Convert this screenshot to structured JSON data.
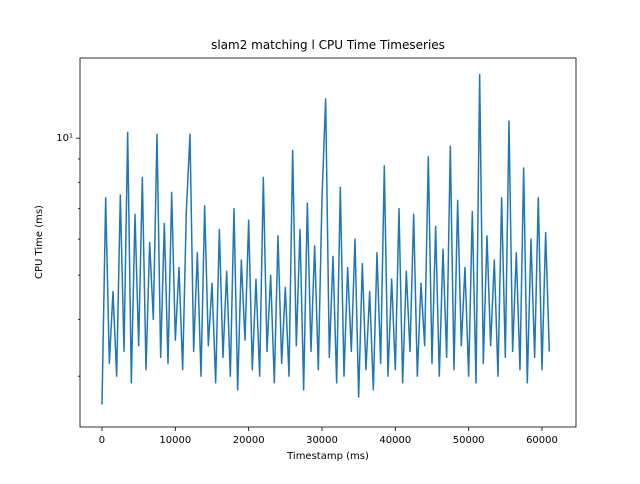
{
  "chart_data": {
    "type": "line",
    "title": "slam2 matching l CPU Time Timeseries",
    "x_label": "Timestamp (ms)",
    "y_label": "CPU Time (ms)",
    "log_y": true,
    "color": "#1f77b4",
    "xlim": [
      -3000,
      64640
    ],
    "ylim": [
      2.32,
      15.0
    ],
    "xticks": [
      0,
      10000,
      20000,
      30000,
      40000,
      50000,
      60000
    ],
    "yticks": [
      {
        "value": 10,
        "label": "10¹"
      }
    ],
    "yminorticks": [
      3,
      4,
      5,
      6,
      7,
      8,
      9
    ],
    "x": [
      0,
      500,
      1000,
      1500,
      2000,
      2500,
      3000,
      3500,
      4000,
      4500,
      5000,
      5500,
      6000,
      6500,
      7000,
      7500,
      8000,
      8500,
      9000,
      9500,
      10000,
      10500,
      11000,
      11500,
      12000,
      12500,
      13000,
      13500,
      14000,
      14500,
      15000,
      15500,
      16000,
      16500,
      17000,
      17500,
      18000,
      18500,
      19000,
      19500,
      20000,
      20500,
      21000,
      21500,
      22000,
      22500,
      23000,
      23500,
      24000,
      24500,
      25000,
      25500,
      26000,
      26500,
      27000,
      27500,
      28000,
      28500,
      29000,
      29500,
      30000,
      30500,
      31000,
      31500,
      32000,
      32500,
      33000,
      33500,
      34000,
      34500,
      35000,
      35500,
      36000,
      36500,
      37000,
      37500,
      38000,
      38500,
      39000,
      39500,
      40000,
      40500,
      41000,
      41500,
      42000,
      42500,
      43000,
      43500,
      44000,
      44500,
      45000,
      45500,
      46000,
      46500,
      47000,
      47500,
      48000,
      48500,
      49000,
      49500,
      50000,
      50500,
      51000,
      51500,
      52000,
      52500,
      53000,
      53500,
      54000,
      54500,
      55000,
      55500,
      56000,
      56500,
      57000,
      57500,
      58000,
      58500,
      59000,
      59500,
      60000,
      60500,
      61000
    ],
    "values": [
      2.6,
      7.4,
      3.2,
      4.6,
      3.0,
      7.5,
      3.4,
      10.3,
      2.9,
      6.8,
      3.5,
      8.2,
      3.1,
      5.9,
      4.0,
      10.2,
      3.3,
      6.5,
      3.2,
      7.6,
      3.6,
      5.2,
      3.1,
      6.9,
      10.2,
      3.4,
      5.6,
      3.0,
      7.1,
      3.5,
      4.8,
      2.9,
      6.3,
      3.3,
      5.1,
      3.0,
      7.0,
      2.8,
      5.4,
      3.6,
      6.6,
      3.1,
      4.9,
      3.0,
      8.2,
      3.4,
      5.0,
      2.9,
      6.1,
      3.2,
      4.7,
      3.0,
      9.4,
      3.5,
      6.3,
      2.8,
      7.2,
      3.4,
      5.8,
      3.1,
      7.4,
      12.2,
      3.3,
      5.5,
      2.9,
      7.8,
      3.0,
      5.2,
      3.4,
      6.0,
      2.7,
      5.3,
      3.1,
      4.6,
      2.8,
      5.6,
      3.2,
      8.7,
      3.0,
      4.9,
      3.1,
      7.0,
      2.9,
      5.1,
      3.4,
      6.8,
      3.0,
      4.8,
      3.5,
      9.1,
      3.2,
      6.4,
      3.0,
      5.7,
      3.3,
      9.6,
      3.1,
      7.3,
      3.5,
      5.2,
      3.0,
      6.9,
      2.9,
      13.8,
      3.2,
      6.1,
      3.5,
      5.4,
      3.0,
      7.4,
      3.3,
      10.9,
      3.4,
      5.6,
      3.1,
      8.6,
      2.9,
      6.0,
      3.3,
      7.4,
      3.1,
      6.2,
      3.4
    ]
  }
}
